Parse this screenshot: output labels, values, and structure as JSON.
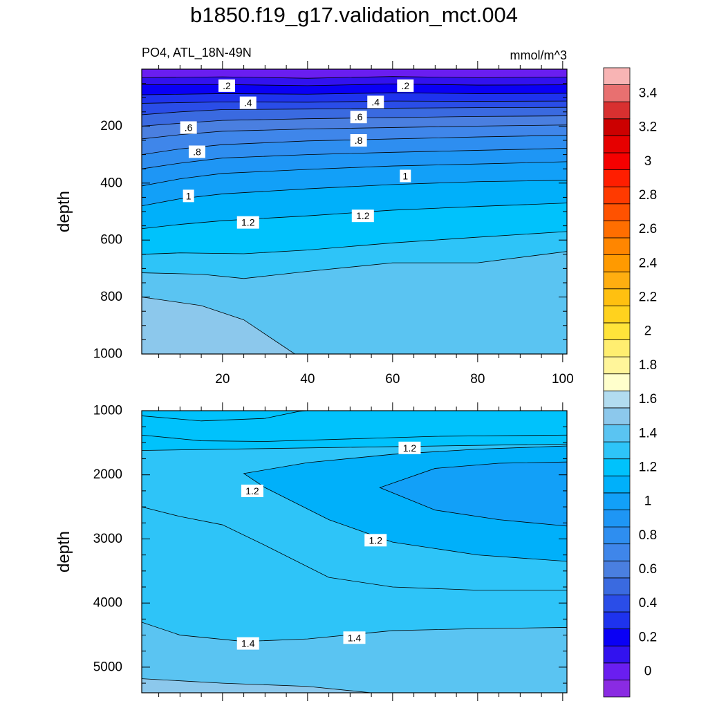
{
  "title": "b1850.f19_g17.validation_mct.004",
  "chart_data": {
    "type": "contour",
    "variable_label": "PO4, ATL_18N-49N",
    "units_label": "mmol/m^3",
    "xlim": [
      1,
      101
    ],
    "xticks": [
      20,
      40,
      60,
      80,
      100
    ],
    "colorbar": {
      "boundaries": [
        -0.1,
        0,
        0.1,
        0.2,
        0.3,
        0.4,
        0.5,
        0.6,
        0.7,
        0.8,
        0.9,
        1.0,
        1.1,
        1.2,
        1.3,
        1.4,
        1.5,
        1.6,
        1.7,
        1.8,
        1.9,
        2.0,
        2.1,
        2.2,
        2.3,
        2.4,
        2.5,
        2.6,
        2.7,
        2.8,
        2.9,
        3.0,
        3.1,
        3.2,
        3.3,
        3.4,
        3.5,
        3.6
      ],
      "colors": [
        "#8a2be2",
        "#6a1ef0",
        "#3212ef",
        "#0a00f5",
        "#1e33ee",
        "#2a4de8",
        "#3a6ae0",
        "#4a7fe0",
        "#3f86ea",
        "#2e8ef0",
        "#1e96f5",
        "#12a0f8",
        "#00b0fa",
        "#00c2fc",
        "#2ec4f8",
        "#5ac4f2",
        "#8cc8ec",
        "#b2dcf0",
        "#ffffcc",
        "#fff59a",
        "#ffee70",
        "#ffe43a",
        "#ffd21e",
        "#ffc010",
        "#ffae10",
        "#ff9a00",
        "#ff8600",
        "#ff6e00",
        "#ff5200",
        "#ff3a00",
        "#ff1e00",
        "#f50000",
        "#e60000",
        "#cc0000",
        "#d83030",
        "#e87070",
        "#f8b4b4"
      ],
      "labels": [
        "0",
        "0.2",
        "0.4",
        "0.6",
        "0.8",
        "1",
        "1.2",
        "1.4",
        "1.6",
        "1.8",
        "2",
        "2.2",
        "2.4",
        "2.6",
        "2.8",
        "3",
        "3.2",
        "3.4"
      ],
      "label_values": [
        0,
        0.2,
        0.4,
        0.6,
        0.8,
        1.0,
        1.2,
        1.4,
        1.6,
        1.8,
        2.0,
        2.2,
        2.4,
        2.6,
        2.8,
        3.0,
        3.2,
        3.4
      ]
    },
    "panels": [
      {
        "name": "upper",
        "ylabel": "depth",
        "ylim": [
          0,
          1000
        ],
        "yticks": [
          200,
          400,
          600,
          800,
          1000
        ],
        "show_xtick_labels": true,
        "contours": [
          {
            "level": 0.1,
            "depth": [
              [
                1,
                30
              ],
              [
                20,
                27
              ],
              [
                40,
                32
              ],
              [
                60,
                26
              ],
              [
                80,
                30
              ],
              [
                101,
                28
              ]
            ]
          },
          {
            "level": 0.2,
            "depth": [
              [
                1,
                55
              ],
              [
                20,
                54
              ],
              [
                40,
                58
              ],
              [
                60,
                52
              ],
              [
                80,
                56
              ],
              [
                101,
                55
              ]
            ]
          },
          {
            "level": 0.3,
            "depth": [
              [
                1,
                90
              ],
              [
                20,
                86
              ],
              [
                40,
                88
              ],
              [
                60,
                83
              ],
              [
                80,
                86
              ],
              [
                101,
                85
              ]
            ]
          },
          {
            "level": 0.4,
            "depth": [
              [
                1,
                120
              ],
              [
                20,
                115
              ],
              [
                40,
                116
              ],
              [
                60,
                112
              ],
              [
                80,
                113
              ],
              [
                101,
                112
              ]
            ]
          },
          {
            "level": 0.5,
            "depth": [
              [
                1,
                160
              ],
              [
                10,
                150
              ],
              [
                20,
                142
              ],
              [
                40,
                140
              ],
              [
                60,
                137
              ],
              [
                80,
                135
              ],
              [
                101,
                134
              ]
            ]
          },
          {
            "level": 0.6,
            "depth": [
              [
                1,
                200
              ],
              [
                10,
                190
              ],
              [
                20,
                180
              ],
              [
                40,
                174
              ],
              [
                60,
                170
              ],
              [
                80,
                166
              ],
              [
                101,
                164
              ]
            ]
          },
          {
            "level": 0.7,
            "depth": [
              [
                1,
                245
              ],
              [
                10,
                230
              ],
              [
                20,
                218
              ],
              [
                40,
                210
              ],
              [
                60,
                205
              ],
              [
                80,
                200
              ],
              [
                101,
                196
              ]
            ]
          },
          {
            "level": 0.8,
            "depth": [
              [
                1,
                300
              ],
              [
                10,
                280
              ],
              [
                20,
                265
              ],
              [
                40,
                252
              ],
              [
                60,
                245
              ],
              [
                80,
                238
              ],
              [
                101,
                232
              ]
            ]
          },
          {
            "level": 0.9,
            "depth": [
              [
                1,
                350
              ],
              [
                10,
                330
              ],
              [
                20,
                312
              ],
              [
                40,
                300
              ],
              [
                60,
                292
              ],
              [
                80,
                285
              ],
              [
                101,
                278
              ]
            ]
          },
          {
            "level": 1.0,
            "depth": [
              [
                1,
                410
              ],
              [
                10,
                385
              ],
              [
                20,
                366
              ],
              [
                40,
                352
              ],
              [
                60,
                340
              ],
              [
                80,
                333
              ],
              [
                101,
                325
              ]
            ]
          },
          {
            "level": 1.1,
            "depth": [
              [
                1,
                480
              ],
              [
                10,
                455
              ],
              [
                20,
                438
              ],
              [
                40,
                420
              ],
              [
                60,
                405
              ],
              [
                80,
                395
              ],
              [
                101,
                390
              ]
            ]
          },
          {
            "level": 1.2,
            "depth": [
              [
                1,
                560
              ],
              [
                10,
                545
              ],
              [
                20,
                532
              ],
              [
                40,
                515
              ],
              [
                60,
                495
              ],
              [
                80,
                482
              ],
              [
                101,
                470
              ]
            ]
          },
          {
            "level": 1.3,
            "depth": [
              [
                1,
                650
              ],
              [
                10,
                645
              ],
              [
                25,
                648
              ],
              [
                40,
                635
              ],
              [
                60,
                610
              ],
              [
                80,
                590
              ],
              [
                101,
                570
              ]
            ]
          },
          {
            "level": 1.4,
            "depth": [
              [
                1,
                715
              ],
              [
                15,
                720
              ],
              [
                25,
                735
              ],
              [
                40,
                710
              ],
              [
                60,
                680
              ],
              [
                80,
                680
              ],
              [
                101,
                640
              ]
            ]
          },
          {
            "level": 1.5,
            "depth": [
              [
                1,
                800
              ],
              [
                15,
                830
              ],
              [
                25,
                880
              ],
              [
                35,
                980
              ],
              [
                37,
                1000
              ]
            ]
          }
        ],
        "labels": [
          {
            "text": ".2",
            "x": 21,
            "depth": 58
          },
          {
            "text": ".2",
            "x": 63,
            "depth": 58
          },
          {
            "text": ".4",
            "x": 26,
            "depth": 118
          },
          {
            "text": ".4",
            "x": 56,
            "depth": 115
          },
          {
            "text": ".6",
            "x": 12,
            "depth": 205
          },
          {
            "text": ".6",
            "x": 52,
            "depth": 168
          },
          {
            "text": ".8",
            "x": 14,
            "depth": 290
          },
          {
            "text": ".8",
            "x": 52,
            "depth": 250
          },
          {
            "text": "1",
            "x": 63,
            "depth": 375
          },
          {
            "text": "1",
            "x": 12,
            "depth": 445
          },
          {
            "text": "1.2",
            "x": 26,
            "depth": 538
          },
          {
            "text": "1.2",
            "x": 53,
            "depth": 515
          }
        ]
      },
      {
        "name": "lower",
        "ylabel": "depth",
        "ylim": [
          1000,
          5400
        ],
        "yticks": [
          1000,
          2000,
          3000,
          4000,
          5000
        ],
        "show_xtick_labels": false,
        "contours": [
          {
            "level": 1.5,
            "depth": [
              [
                1,
                1080
              ],
              [
                15,
                1160
              ],
              [
                30,
                1120
              ],
              [
                38,
                1010
              ],
              [
                40,
                1000
              ]
            ]
          },
          {
            "level": 1.4,
            "depth": [
              [
                1,
                1380
              ],
              [
                15,
                1470
              ],
              [
                30,
                1480
              ],
              [
                50,
                1440
              ],
              [
                70,
                1400
              ],
              [
                101,
                1380
              ]
            ]
          },
          {
            "level": 1.3,
            "depth": [
              [
                1,
                1620
              ],
              [
                101,
                1520
              ]
            ]
          },
          {
            "level": 1.2,
            "depth": [
              [
                101,
                1550
              ],
              [
                80,
                1600
              ],
              [
                60,
                1680
              ],
              [
                40,
                1810
              ],
              [
                25,
                1980
              ],
              [
                30,
                2200
              ],
              [
                45,
                2700
              ],
              [
                60,
                3050
              ],
              [
                80,
                3250
              ],
              [
                101,
                3350
              ]
            ]
          },
          {
            "level": 1.1,
            "depth": [
              [
                101,
                1800
              ],
              [
                85,
                1820
              ],
              [
                70,
                1900
              ],
              [
                57,
                2200
              ],
              [
                70,
                2550
              ],
              [
                85,
                2700
              ],
              [
                101,
                2800
              ]
            ]
          },
          {
            "level": 1.3,
            "depth": [
              [
                1,
                2500
              ],
              [
                10,
                2650
              ],
              [
                20,
                2780
              ],
              [
                30,
                3100
              ],
              [
                45,
                3600
              ],
              [
                60,
                3750
              ],
              [
                80,
                3800
              ],
              [
                101,
                3800
              ]
            ]
          },
          {
            "level": 1.4,
            "depth": [
              [
                1,
                4300
              ],
              [
                10,
                4500
              ],
              [
                25,
                4600
              ],
              [
                40,
                4560
              ],
              [
                60,
                4430
              ],
              [
                80,
                4400
              ],
              [
                101,
                4380
              ]
            ]
          },
          {
            "level": 1.5,
            "depth": [
              [
                1,
                5180
              ],
              [
                20,
                5250
              ],
              [
                40,
                5300
              ],
              [
                55,
                5400
              ]
            ]
          }
        ],
        "labels": [
          {
            "text": "1.2",
            "x": 64,
            "depth": 1580
          },
          {
            "text": "1.2",
            "x": 27,
            "depth": 2250
          },
          {
            "text": "1.2",
            "x": 56,
            "depth": 3020
          },
          {
            "text": "1.4",
            "x": 26,
            "depth": 4630
          },
          {
            "text": "1.4",
            "x": 51,
            "depth": 4540
          }
        ]
      }
    ]
  }
}
